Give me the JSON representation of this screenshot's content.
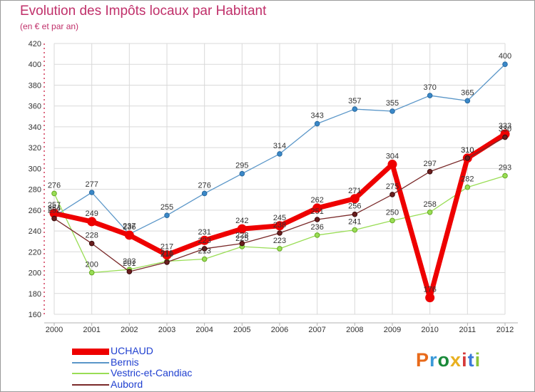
{
  "title": "Evolution des Impôts locaux par Habitant",
  "subtitle": "(en € et par an)",
  "brand": {
    "letters": [
      "P",
      "r",
      "o",
      "x",
      "i",
      "t",
      "i"
    ],
    "colors": [
      "#e86a1a",
      "#3a9ad9",
      "#1a8a3a",
      "#e8b020",
      "#d63a3a",
      "#3a7ad9",
      "#8ac43a"
    ]
  },
  "chart_data": {
    "type": "line",
    "title": "Evolution des Impôts locaux par Habitant",
    "subtitle": "(en € et par an)",
    "xlabel": "",
    "ylabel": "",
    "x": [
      "2000",
      "2001",
      "2002",
      "2003",
      "2004",
      "2005",
      "2006",
      "2007",
      "2008",
      "2009",
      "2010",
      "2011",
      "2012"
    ],
    "ylim": [
      160,
      420
    ],
    "yticks": [
      160,
      180,
      200,
      220,
      240,
      260,
      280,
      300,
      320,
      340,
      360,
      380,
      400,
      420
    ],
    "grid": true,
    "legend_position": "bottom-left",
    "series": [
      {
        "name": "UCHAUD",
        "color": "#ee0000",
        "values": [
          257,
          249,
          236,
          217,
          231,
          242,
          245,
          262,
          271,
          304,
          176,
          310,
          333
        ],
        "labels": [
          "257",
          "249",
          "236",
          "217",
          "231",
          "242",
          "245",
          "262",
          "271",
          "304",
          "176",
          "310",
          "333"
        ]
      },
      {
        "name": "Bernis",
        "color": "#5a96c8",
        "values": [
          254,
          277,
          237,
          255,
          276,
          295,
          314,
          343,
          357,
          355,
          370,
          365,
          400
        ],
        "labels": [
          "254",
          "277",
          "237",
          "255",
          "276",
          "295",
          "314",
          "343",
          "357",
          "355",
          "370",
          "365",
          "400"
        ]
      },
      {
        "name": "Vestric-et-Candiac",
        "color": "#99dd55",
        "values": [
          276,
          200,
          203,
          211,
          213,
          225,
          223,
          236,
          241,
          250,
          258,
          282,
          293
        ],
        "labels": [
          "276",
          "200",
          "203",
          "211",
          "213",
          "225",
          "223",
          "236",
          "241",
          "250",
          "258",
          "282",
          "293"
        ]
      },
      {
        "name": "Aubord",
        "color": "#7a2a2a",
        "values": [
          252,
          228,
          201,
          210,
          223,
          228,
          238,
          251,
          256,
          275,
          297,
          310,
          330
        ],
        "labels": [
          "252",
          "228",
          "201",
          "210",
          "223",
          "228",
          "238",
          "251",
          "256",
          "275",
          "297",
          "310",
          "330"
        ]
      }
    ]
  }
}
